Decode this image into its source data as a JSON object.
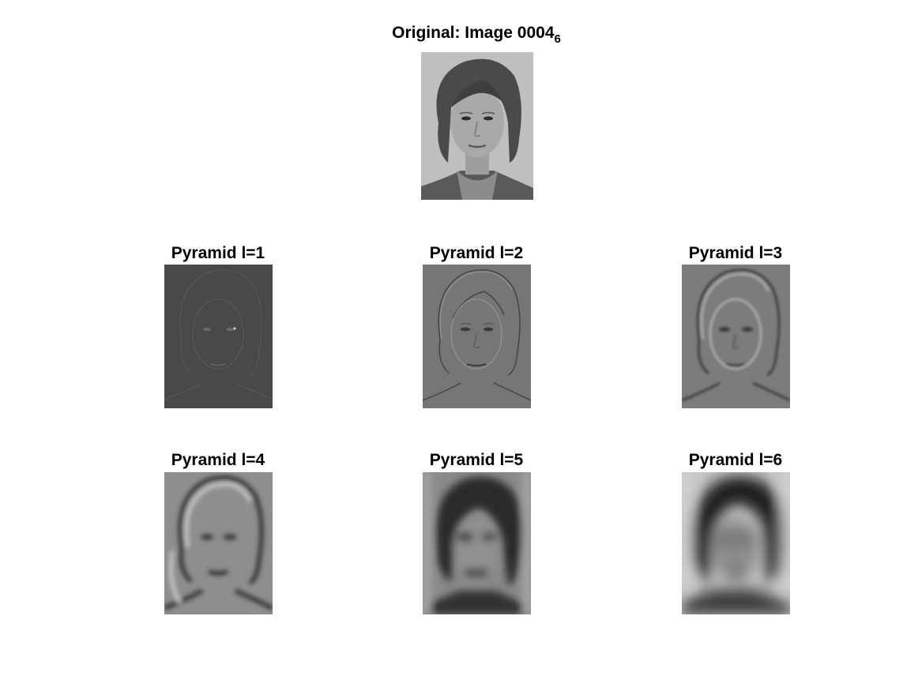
{
  "original": {
    "title_main": "Original: Image 0004",
    "title_sub": "6"
  },
  "pyramid": [
    {
      "title": "Pyramid l=1"
    },
    {
      "title": "Pyramid l=2"
    },
    {
      "title": "Pyramid l=3"
    },
    {
      "title": "Pyramid l=4"
    },
    {
      "title": "Pyramid l=5"
    },
    {
      "title": "Pyramid l=6"
    }
  ],
  "colors": {
    "background": "#ffffff",
    "title": "#000000"
  }
}
